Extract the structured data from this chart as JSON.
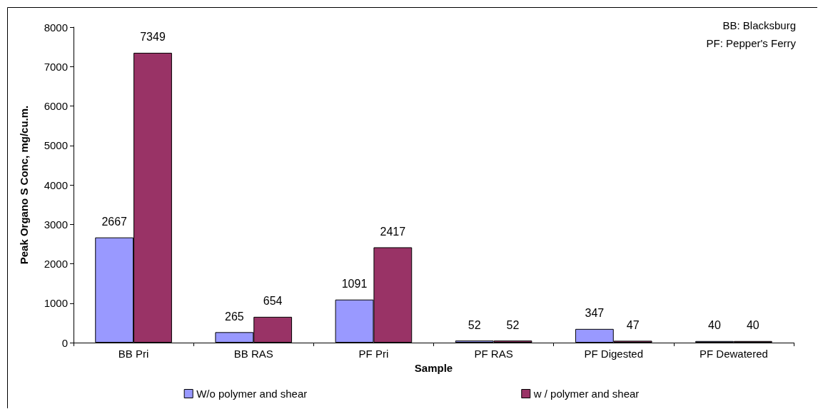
{
  "chart_data": {
    "type": "bar",
    "xlabel": "Sample",
    "ylabel": "Peak Organo S Conc, mg/cu.m.",
    "categories": [
      "BB Pri",
      "BB RAS",
      "PF Pri",
      "PF RAS",
      "PF Digested",
      "PF Dewatered"
    ],
    "series": [
      {
        "name": "W/o polymer and shear",
        "color": "#9999ff",
        "values": [
          2667,
          265,
          1091,
          52,
          347,
          40
        ]
      },
      {
        "name": "w / polymer and shear",
        "color": "#993366",
        "values": [
          7349,
          654,
          2417,
          52,
          47,
          40
        ]
      }
    ],
    "ylim": [
      0,
      8000
    ],
    "yticks": [
      0,
      1000,
      2000,
      3000,
      4000,
      5000,
      6000,
      7000,
      8000
    ],
    "grid": false,
    "legend": "bottom",
    "data_labels": true,
    "annotations": [
      "BB: Blacksburg",
      "PF: Pepper's Ferry"
    ]
  }
}
